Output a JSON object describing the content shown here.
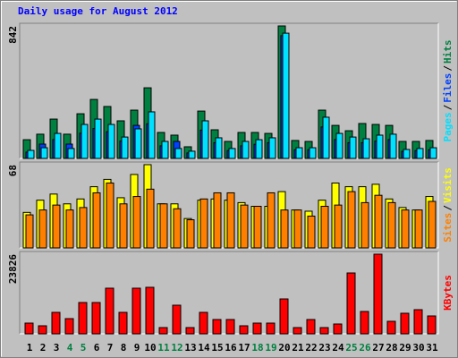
{
  "title": "Daily usage for August 2012",
  "legend_separator": "/",
  "chart_data": [
    {
      "type": "bar",
      "ylim": [
        0,
        842
      ],
      "series": [
        {
          "name": "Hits",
          "color": "#008040",
          "values": [
            119,
            154,
            250,
            154,
            284,
            375,
            330,
            239,
            307,
            449,
            165,
            148,
            74,
            301,
            182,
            108,
            165,
            165,
            159,
            842,
            114,
            108,
            307,
            210,
            176,
            222,
            216,
            210,
            108,
            108,
            114
          ]
        },
        {
          "name": "Files",
          "color": "#0040ff",
          "values": [
            40,
            91,
            120,
            91,
            160,
            190,
            170,
            110,
            210,
            220,
            80,
            108,
            35,
            180,
            100,
            50,
            80,
            90,
            100,
            780,
            55,
            55,
            200,
            120,
            100,
            100,
            110,
            120,
            45,
            50,
            55
          ]
        },
        {
          "name": "Pages",
          "color": "#00e0ff",
          "values": [
            51,
            68,
            159,
            63,
            216,
            250,
            216,
            136,
            188,
            296,
            108,
            63,
            46,
            239,
            131,
            63,
            108,
            119,
            131,
            796,
            68,
            68,
            262,
            159,
            136,
            125,
            148,
            154,
            57,
            63,
            68
          ]
        }
      ]
    },
    {
      "type": "bar",
      "ylim": [
        0,
        68
      ],
      "series": [
        {
          "name": "Visits",
          "color": "#ffff00",
          "values": [
            29,
            39,
            44,
            36,
            40,
            50,
            56,
            41,
            60,
            68,
            36,
            36,
            24,
            39,
            40,
            39,
            37,
            34,
            34,
            46,
            31,
            30,
            39,
            53,
            50,
            50,
            52,
            40,
            33,
            31,
            42
          ]
        },
        {
          "name": "Sites",
          "color": "#ff8000",
          "values": [
            27,
            31,
            35,
            31,
            33,
            45,
            53,
            36,
            42,
            48,
            36,
            32,
            23,
            40,
            45,
            45,
            35,
            34,
            45,
            31,
            31,
            26,
            34,
            35,
            46,
            37,
            43,
            37,
            31,
            31,
            38
          ]
        }
      ]
    },
    {
      "type": "bar",
      "ylim": [
        0,
        23826
      ],
      "categories": [
        "1",
        "2",
        "3",
        "4",
        "5",
        "6",
        "7",
        "8",
        "9",
        "10",
        "11",
        "12",
        "13",
        "14",
        "15",
        "16",
        "17",
        "18",
        "19",
        "20",
        "21",
        "22",
        "23",
        "24",
        "25",
        "26",
        "27",
        "28",
        "29",
        "30",
        "31"
      ],
      "category_colors": [
        "#000000",
        "#000000",
        "#000000",
        "#008040",
        "#008040",
        "#000000",
        "#000000",
        "#000000",
        "#000000",
        "#000000",
        "#008040",
        "#008040",
        "#000000",
        "#000000",
        "#000000",
        "#000000",
        "#000000",
        "#008040",
        "#008040",
        "#000000",
        "#000000",
        "#000000",
        "#000000",
        "#000000",
        "#008040",
        "#008040",
        "#000000",
        "#000000",
        "#000000",
        "#000000",
        "#000000"
      ],
      "series": [
        {
          "name": "KBytes",
          "color": "#ff0000",
          "values": [
            3213,
            2409,
            6425,
            4551,
            9370,
            9370,
            13653,
            6425,
            13653,
            13921,
            1874,
            8567,
            1874,
            6425,
            4283,
            4283,
            2409,
            3213,
            3213,
            10440,
            1874,
            4283,
            1874,
            2945,
            18204,
            6693,
            23826,
            3748,
            6157,
            7228,
            5354
          ]
        }
      ]
    }
  ]
}
